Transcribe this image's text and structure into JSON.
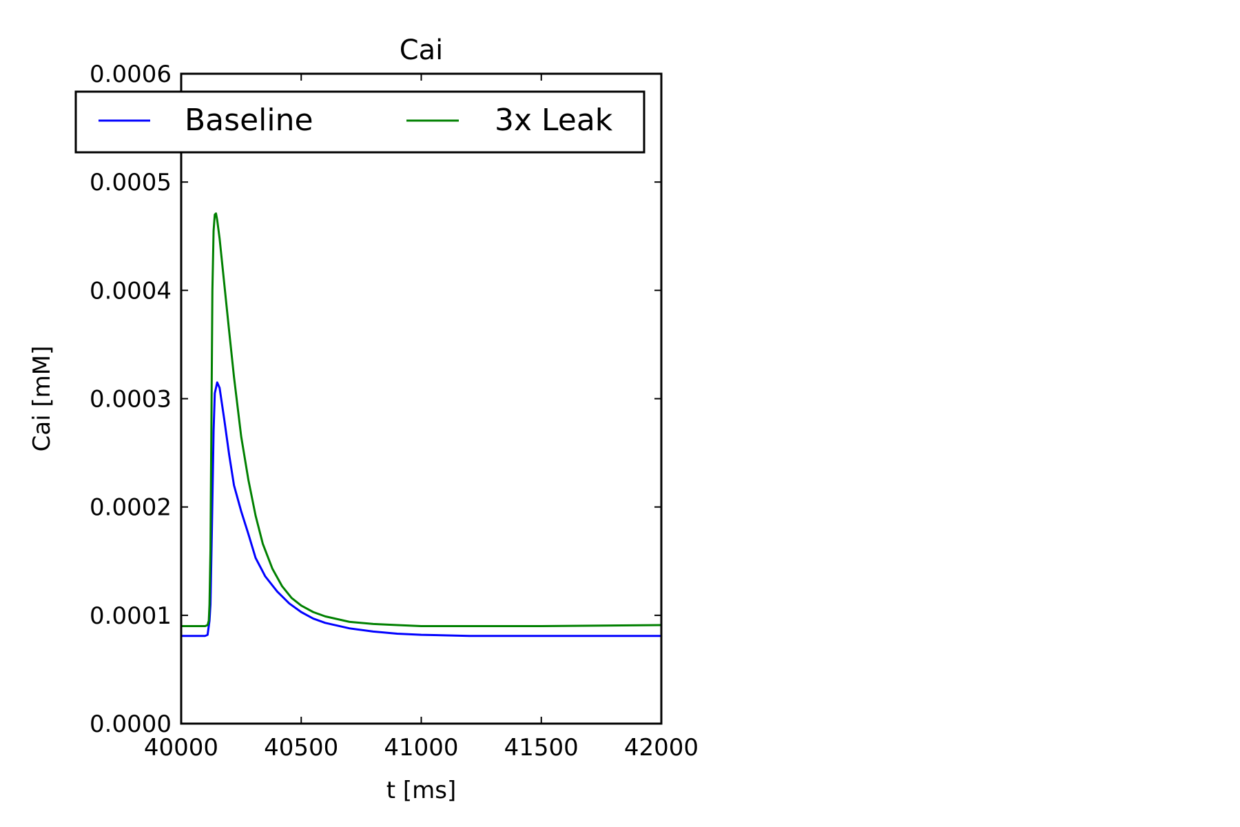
{
  "chart_data": {
    "type": "line",
    "title": "Cai",
    "xlabel": "t [ms]",
    "ylabel": "Cai [mM]",
    "xlim": [
      40000,
      42000
    ],
    "ylim": [
      0,
      0.0006
    ],
    "x_ticks": [
      40000,
      40500,
      41000,
      41500,
      42000
    ],
    "x_tick_labels": [
      "40000",
      "40500",
      "41000",
      "41500",
      "42000"
    ],
    "y_ticks": [
      0,
      0.0001,
      0.0002,
      0.0003,
      0.0004,
      0.0005,
      0.0006
    ],
    "y_tick_labels": [
      "0.0000",
      "0.0001",
      "0.0002",
      "0.0003",
      "0.0004",
      "0.0005",
      "0.0006"
    ],
    "grid": false,
    "legend": {
      "position": "top",
      "columns": 2
    },
    "series": [
      {
        "name": "Baseline",
        "color": "#0000ff",
        "x": [
          40000,
          40100,
          40110,
          40118,
          40122,
          40128,
          40135,
          40140,
          40150,
          40160,
          40180,
          40200,
          40220,
          40250,
          40280,
          40310,
          40350,
          40400,
          40450,
          40500,
          40550,
          40600,
          40700,
          40800,
          40900,
          41000,
          41200,
          41500,
          42000
        ],
        "y": [
          8.1e-05,
          8.1e-05,
          8.2e-05,
          9.5e-05,
          0.00011,
          0.00018,
          0.00027,
          0.000305,
          0.000315,
          0.00031,
          0.00028,
          0.000248,
          0.00022,
          0.000196,
          0.000175,
          0.000153,
          0.000136,
          0.000122,
          0.000111,
          0.000103,
          9.7e-05,
          9.3e-05,
          8.8e-05,
          8.5e-05,
          8.3e-05,
          8.2e-05,
          8.1e-05,
          8.1e-05,
          8.1e-05
        ]
      },
      {
        "name": "3x Leak",
        "color": "#008000",
        "x": [
          40000,
          40100,
          40110,
          40115,
          40118,
          40122,
          40126,
          40130,
          40135,
          40140,
          40145,
          40150,
          40160,
          40180,
          40200,
          40220,
          40250,
          40280,
          40310,
          40340,
          40380,
          40420,
          40460,
          40500,
          40550,
          40600,
          40700,
          40800,
          40900,
          41000,
          41200,
          41500,
          42000
        ],
        "y": [
          9e-05,
          9e-05,
          9.1e-05,
          9.5e-05,
          0.00011,
          0.00016,
          0.00028,
          0.0004,
          0.000455,
          0.00047,
          0.000471,
          0.000465,
          0.000448,
          0.000405,
          0.000362,
          0.00032,
          0.000265,
          0.000225,
          0.000192,
          0.000166,
          0.000143,
          0.000127,
          0.000116,
          0.000109,
          0.000103,
          9.9e-05,
          9.4e-05,
          9.2e-05,
          9.1e-05,
          9e-05,
          9e-05,
          9e-05,
          9.1e-05
        ]
      }
    ]
  }
}
